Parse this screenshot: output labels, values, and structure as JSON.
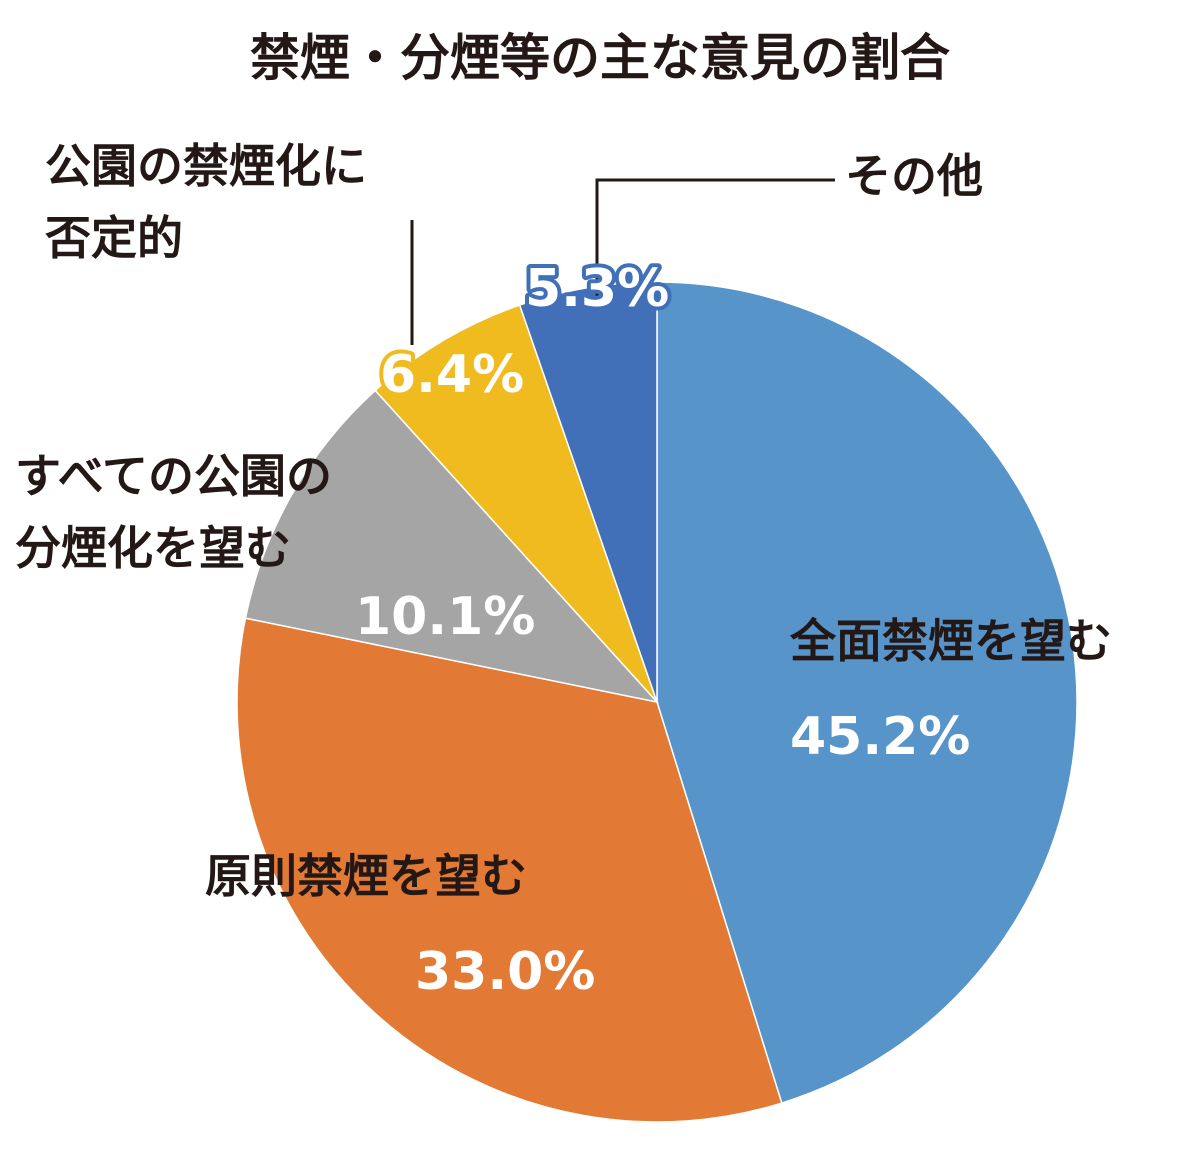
{
  "chart_data": {
    "type": "pie",
    "title": "禁煙・分煙等の主な意見の割合",
    "categories": [
      "全面禁煙を望む",
      "原則禁煙を望む",
      "すべての公園の\n分煙化を望む",
      "公園の禁煙化に\n否定的",
      "その他"
    ],
    "values": [
      45.2,
      33.0,
      10.1,
      6.4,
      5.3
    ],
    "value_labels": [
      "45.2%",
      "33.0%",
      "10.1%",
      "6.4%",
      "5.3%"
    ],
    "colors": [
      "#5694c9",
      "#e27a36",
      "#a5a5a5",
      "#f0bb1f",
      "#4270b8"
    ]
  }
}
